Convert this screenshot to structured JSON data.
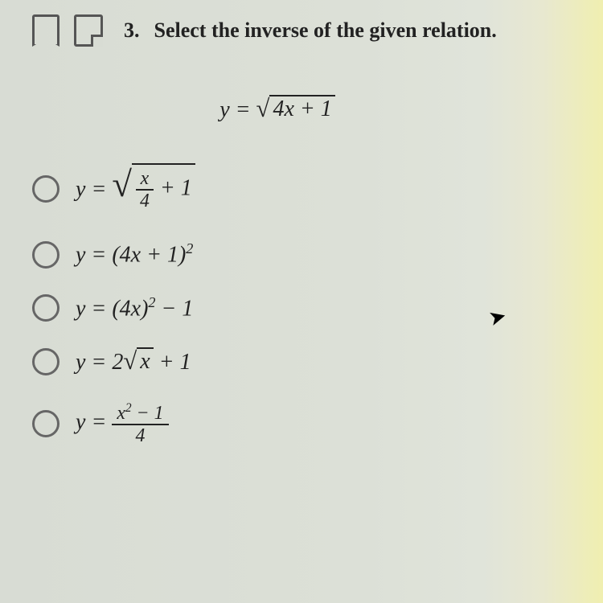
{
  "question": {
    "number": "3.",
    "prompt": "Select the inverse of the given relation."
  },
  "given": {
    "lhs": "y",
    "rhs_radicand": "4x + 1"
  },
  "options": {
    "a": {
      "lhs": "y",
      "frac_top": "x",
      "frac_bot": "4",
      "tail": " + 1"
    },
    "b": {
      "text": "y = (4x + 1)",
      "exp": "2"
    },
    "c": {
      "text_before": "y = (4x)",
      "exp": "2",
      "text_after": " − 1"
    },
    "d": {
      "before": "y = 2",
      "radicand": "x",
      "after": " + 1"
    },
    "e": {
      "lhs": "y",
      "num_before": "x",
      "num_exp": "2",
      "num_after": " − 1",
      "den": "4"
    }
  }
}
